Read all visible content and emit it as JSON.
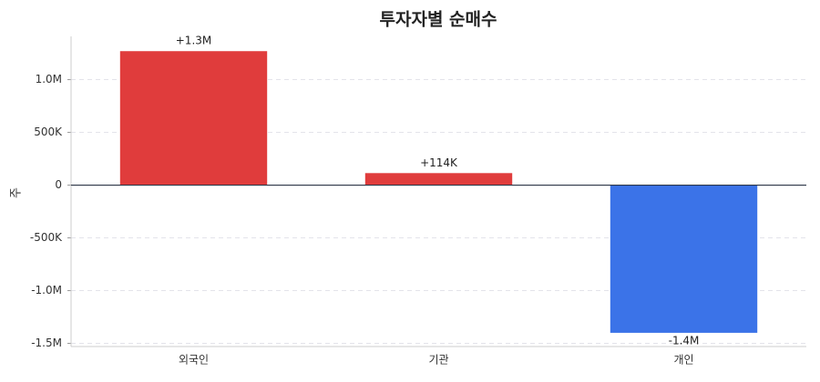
{
  "chart_data": {
    "type": "bar",
    "title": "투자자별 순매수",
    "y_label": "주",
    "categories": [
      "외국인",
      "기관",
      "개인"
    ],
    "values": [
      1270000,
      114000,
      -1400000
    ],
    "value_labels": [
      "+1.3M",
      "+114K",
      "-1.4M"
    ],
    "colors": [
      "#e03c3c",
      "#e03c3c",
      "#3b73e8"
    ],
    "ylim": [
      -1530000,
      1410000
    ],
    "yticks": [
      {
        "value": -1500000,
        "label": "-1.5M"
      },
      {
        "value": -1000000,
        "label": "-1.0M"
      },
      {
        "value": -500000,
        "label": "-500K"
      },
      0,
      {
        "value": 500000,
        "label": "500K"
      },
      {
        "value": 1000000,
        "label": "1.0M"
      }
    ],
    "grid": true
  }
}
